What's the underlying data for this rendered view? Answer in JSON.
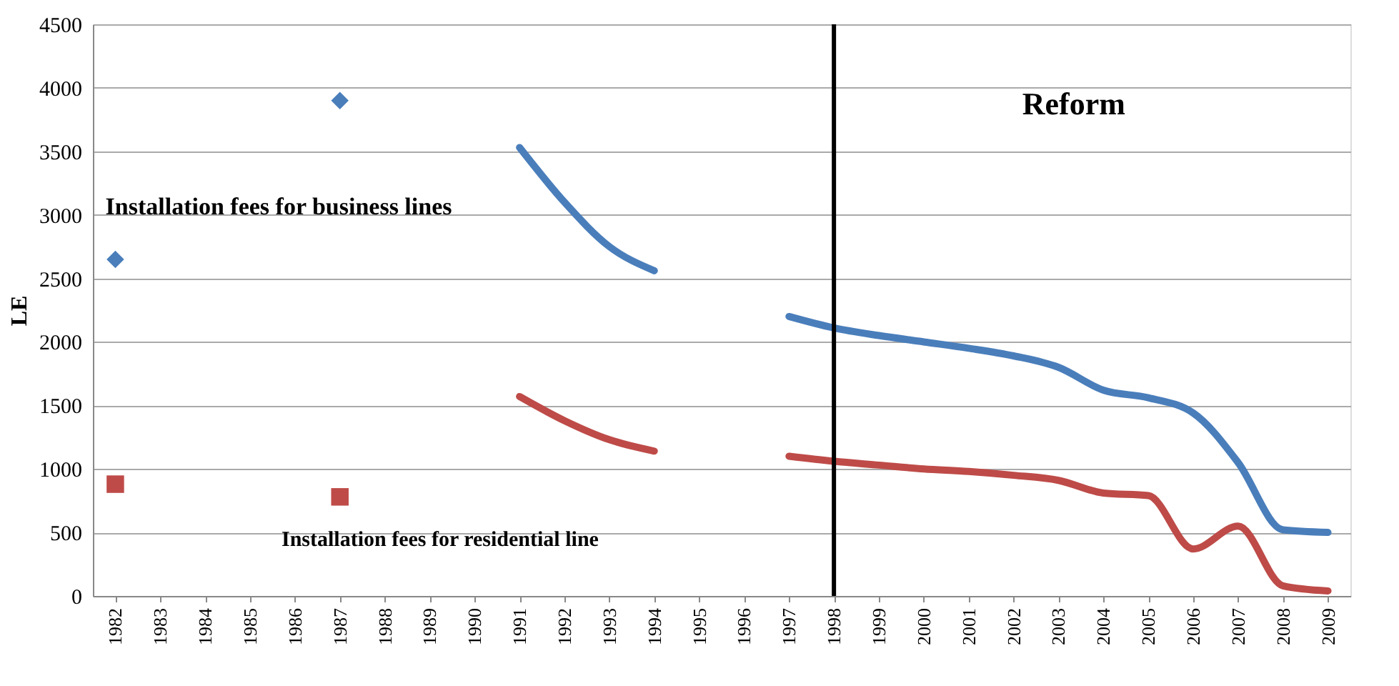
{
  "chart_data": {
    "type": "line",
    "ylabel": "LE",
    "categories": [
      "1982",
      "1983",
      "1984",
      "1985",
      "1986",
      "1987",
      "1988",
      "1989",
      "1990",
      "1991",
      "1992",
      "1993",
      "1994",
      "1995",
      "1996",
      "1997",
      "1998",
      "1999",
      "2000",
      "2001",
      "2002",
      "2003",
      "2004",
      "2005",
      "2006",
      "2007",
      "2008",
      "2009"
    ],
    "series": [
      {
        "color": "#4a7ebb",
        "values": [
          null,
          null,
          null,
          null,
          null,
          null,
          null,
          null,
          null,
          3530,
          3100,
          2750,
          2560,
          null,
          null,
          2200,
          2110,
          2050,
          2000,
          1950,
          1890,
          1800,
          1620,
          1560,
          1440,
          1050,
          520,
          500
        ]
      },
      {
        "color": "#be4b48",
        "values": [
          null,
          null,
          null,
          null,
          null,
          null,
          null,
          null,
          null,
          1570,
          1380,
          1230,
          1140,
          null,
          null,
          1100,
          1060,
          1030,
          1000,
          980,
          950,
          910,
          810,
          790,
          370,
          550,
          80,
          40
        ]
      },
      {
        "type": "scatter",
        "marker": "diamond",
        "color": "#4a7ebb",
        "values": [
          2650,
          null,
          null,
          null,
          null,
          3900,
          null,
          null,
          null,
          null,
          null,
          null,
          null,
          null,
          null,
          null,
          null,
          null,
          null,
          null,
          null,
          null,
          null,
          null,
          null,
          null,
          null,
          null
        ]
      },
      {
        "type": "scatter",
        "marker": "square",
        "color": "#be4b48",
        "values": [
          880,
          null,
          null,
          null,
          null,
          780,
          null,
          null,
          null,
          null,
          null,
          null,
          null,
          null,
          null,
          null,
          null,
          null,
          null,
          null,
          null,
          null,
          null,
          null,
          null,
          null,
          null,
          null
        ]
      }
    ],
    "ylim": [
      0,
      4500
    ],
    "yticks": [
      0,
      500,
      1000,
      1500,
      2000,
      2500,
      3000,
      3500,
      4000,
      4500
    ],
    "grid": "y",
    "ref_lines": [
      {
        "axis": "x",
        "value": "1998",
        "color": "#000000"
      }
    ],
    "annotations": [
      "Installation fees for business lines",
      "Installation fees for residential line",
      "Reform"
    ]
  }
}
